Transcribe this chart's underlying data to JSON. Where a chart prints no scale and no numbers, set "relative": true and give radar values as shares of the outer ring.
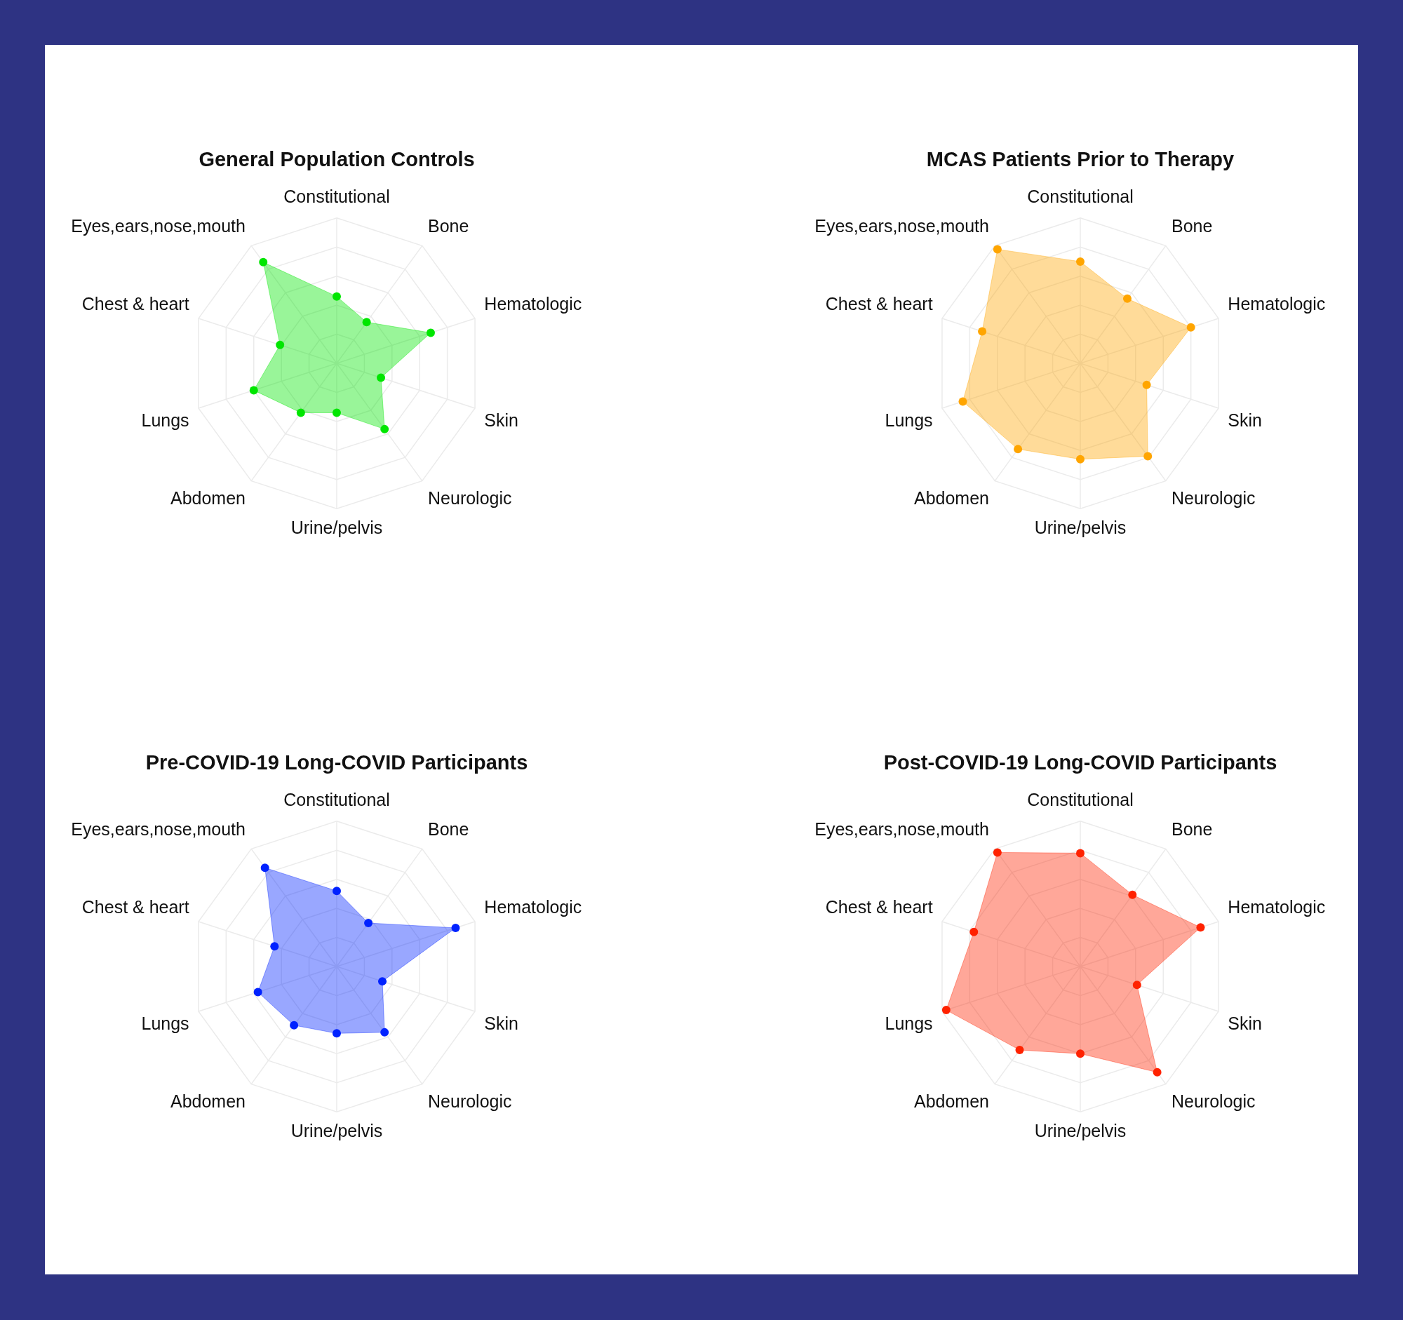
{
  "chart_data": [
    {
      "type": "radar",
      "title": "General Population Controls",
      "categories": [
        "Constitutional",
        "Bone",
        "Hematologic",
        "Skin",
        "Neurologic",
        "Urine/pelvis",
        "Abdomen",
        "Lungs",
        "Chest & heart",
        "Eyes,ears,nose,mouth"
      ],
      "relative": true,
      "grid": true,
      "marker": "circle",
      "series": [
        {
          "color": "#00e600",
          "values": [
            0.46,
            0.35,
            0.68,
            0.32,
            0.56,
            0.34,
            0.42,
            0.6,
            0.41,
            0.86
          ]
        }
      ]
    },
    {
      "type": "radar",
      "title": "MCAS Patients Prior to Therapy",
      "categories": [
        "Constitutional",
        "Bone",
        "Hematologic",
        "Skin",
        "Neurologic",
        "Urine/pelvis",
        "Abdomen",
        "Lungs",
        "Chest & heart",
        "Eyes,ears,nose,mouth"
      ],
      "relative": true,
      "grid": true,
      "marker": "circle",
      "series": [
        {
          "color": "#ffa500",
          "values": [
            0.7,
            0.55,
            0.8,
            0.48,
            0.79,
            0.66,
            0.73,
            0.85,
            0.71,
            0.97
          ]
        }
      ]
    },
    {
      "type": "radar",
      "title": "Pre-COVID-19 Long-COVID Participants",
      "categories": [
        "Constitutional",
        "Bone",
        "Hematologic",
        "Skin",
        "Neurologic",
        "Urine/pelvis",
        "Abdomen",
        "Lungs",
        "Chest & heart",
        "Eyes,ears,nose,mouth"
      ],
      "relative": true,
      "grid": true,
      "marker": "circle",
      "series": [
        {
          "color": "#0022ff",
          "values": [
            0.52,
            0.37,
            0.86,
            0.33,
            0.56,
            0.46,
            0.5,
            0.57,
            0.45,
            0.84
          ]
        }
      ]
    },
    {
      "type": "radar",
      "title": "Post-COVID-19 Long-COVID Participants",
      "categories": [
        "Constitutional",
        "Bone",
        "Hematologic",
        "Skin",
        "Neurologic",
        "Urine/pelvis",
        "Abdomen",
        "Lungs",
        "Chest & heart",
        "Eyes,ears,nose,mouth"
      ],
      "relative": true,
      "grid": true,
      "marker": "circle",
      "series": [
        {
          "color": "#ff2200",
          "values": [
            0.78,
            0.61,
            0.87,
            0.41,
            0.9,
            0.6,
            0.71,
            0.97,
            0.77,
            0.97
          ]
        }
      ]
    }
  ]
}
